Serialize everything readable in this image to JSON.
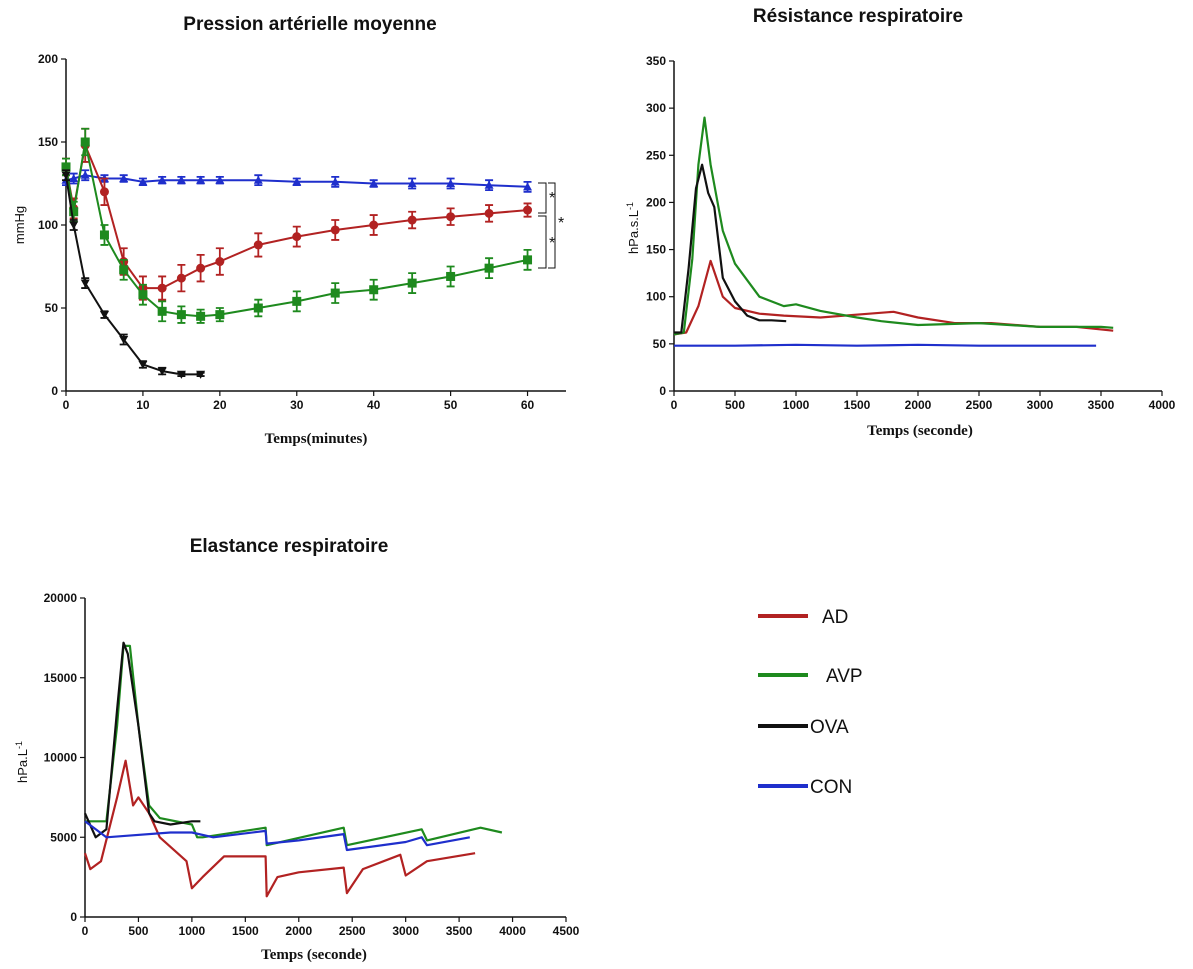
{
  "colors": {
    "AD": "#b22222",
    "AVP": "#1e8a1e",
    "OVA": "#111111",
    "CON": "#1f2fcc"
  },
  "legend": [
    {
      "key": "AD",
      "label": "AD"
    },
    {
      "key": "AVP",
      "label": "AVP"
    },
    {
      "key": "OVA",
      "label": "OVA"
    },
    {
      "key": "CON",
      "label": "CON"
    }
  ],
  "chart_data": [
    {
      "id": "pam",
      "type": "line",
      "title": "Pression artérielle moyenne",
      "xlabel": "Temps(minutes)",
      "ylabel": "mmHg",
      "xlim": [
        0,
        65
      ],
      "ylim": [
        0,
        200
      ],
      "xticks": [
        0,
        10,
        20,
        30,
        40,
        50,
        60
      ],
      "yticks": [
        0,
        50,
        100,
        150,
        200
      ],
      "annotations": [
        "*",
        "*",
        "*"
      ],
      "series": [
        {
          "key": "CON",
          "marker": "triangle-up",
          "x": [
            0,
            1,
            2.5,
            5,
            7.5,
            10,
            12.5,
            15,
            17.5,
            20,
            25,
            30,
            35,
            40,
            45,
            50,
            55,
            60
          ],
          "y": [
            127,
            128,
            130,
            128,
            128,
            126,
            127,
            127,
            127,
            127,
            127,
            126,
            126,
            125,
            125,
            125,
            124,
            123
          ],
          "err": [
            3,
            3,
            3,
            2,
            2,
            2,
            2,
            2,
            2,
            2,
            3,
            2,
            3,
            2,
            3,
            3,
            3,
            3
          ]
        },
        {
          "key": "AD",
          "marker": "circle",
          "x": [
            0,
            1,
            2.5,
            5,
            7.5,
            10,
            12.5,
            15,
            17.5,
            20,
            25,
            30,
            35,
            40,
            45,
            50,
            55,
            60
          ],
          "y": [
            135,
            110,
            148,
            120,
            78,
            62,
            62,
            68,
            74,
            78,
            88,
            93,
            97,
            100,
            103,
            105,
            107,
            109
          ],
          "err": [
            5,
            6,
            10,
            8,
            8,
            7,
            7,
            8,
            8,
            8,
            7,
            6,
            6,
            6,
            5,
            5,
            5,
            4
          ]
        },
        {
          "key": "AVP",
          "marker": "square",
          "x": [
            0,
            1,
            2.5,
            5,
            7.5,
            10,
            12.5,
            15,
            17.5,
            20,
            25,
            30,
            35,
            40,
            45,
            50,
            55,
            60
          ],
          "y": [
            135,
            108,
            150,
            94,
            73,
            58,
            48,
            46,
            45,
            46,
            50,
            54,
            59,
            61,
            65,
            69,
            74,
            79
          ],
          "err": [
            5,
            6,
            8,
            6,
            6,
            6,
            6,
            5,
            4,
            4,
            5,
            6,
            6,
            6,
            6,
            6,
            6,
            6
          ]
        },
        {
          "key": "OVA",
          "marker": "triangle-down",
          "x": [
            0,
            1,
            2.5,
            5,
            7.5,
            10,
            12.5,
            15,
            17.5
          ],
          "y": [
            130,
            100,
            65,
            46,
            31,
            16,
            12,
            10,
            10
          ],
          "err": [
            3,
            3,
            3,
            2,
            3,
            2,
            2,
            1,
            1
          ]
        }
      ]
    },
    {
      "id": "res",
      "type": "line",
      "title": "Résistance respiratoire",
      "xlabel": "Temps (seconde)",
      "ylabel": "hPa.s.L",
      "ylabel_sup": "-1",
      "xlim": [
        0,
        4000
      ],
      "ylim": [
        0,
        350
      ],
      "xticks": [
        0,
        500,
        1000,
        1500,
        2000,
        2500,
        3000,
        3500,
        4000
      ],
      "yticks": [
        0,
        50,
        100,
        150,
        200,
        250,
        300,
        350
      ],
      "series": [
        {
          "key": "CON",
          "x": [
            0,
            500,
            1000,
            1500,
            2000,
            2500,
            3000,
            3460
          ],
          "y": [
            48,
            48,
            49,
            48,
            49,
            48,
            48,
            48
          ]
        },
        {
          "key": "AD",
          "x": [
            0,
            100,
            200,
            300,
            400,
            500,
            700,
            900,
            1200,
            1600,
            1800,
            2000,
            2300,
            2600,
            3000,
            3300,
            3600
          ],
          "y": [
            60,
            62,
            90,
            138,
            100,
            88,
            82,
            80,
            78,
            82,
            84,
            78,
            72,
            72,
            68,
            68,
            64
          ]
        },
        {
          "key": "AVP",
          "x": [
            0,
            80,
            150,
            200,
            250,
            300,
            400,
            500,
            700,
            900,
            1000,
            1200,
            1500,
            1700,
            2000,
            2500,
            3000,
            3500,
            3600
          ],
          "y": [
            60,
            62,
            140,
            240,
            290,
            240,
            170,
            135,
            100,
            90,
            92,
            85,
            78,
            74,
            70,
            72,
            68,
            68,
            67
          ]
        },
        {
          "key": "OVA",
          "x": [
            0,
            60,
            120,
            180,
            230,
            280,
            330,
            400,
            500,
            600,
            700,
            800,
            920
          ],
          "y": [
            62,
            62,
            130,
            215,
            240,
            210,
            195,
            120,
            95,
            80,
            75,
            75,
            74
          ]
        }
      ]
    },
    {
      "id": "ela",
      "type": "line",
      "title": "Elastance respiratoire",
      "xlabel": "Temps (seconde)",
      "ylabel": "hPa.L",
      "ylabel_sup": "-1",
      "xlim": [
        0,
        4500
      ],
      "ylim": [
        0,
        20000
      ],
      "xticks": [
        0,
        500,
        1000,
        1500,
        2000,
        2500,
        3000,
        3500,
        4000,
        4500
      ],
      "yticks": [
        0,
        5000,
        10000,
        15000,
        20000
      ],
      "series": [
        {
          "key": "AD",
          "x": [
            0,
            50,
            150,
            300,
            380,
            450,
            500,
            600,
            700,
            950,
            1000,
            1100,
            1300,
            1690,
            1700,
            1800,
            2000,
            2420,
            2450,
            2600,
            2950,
            3000,
            3200,
            3650
          ],
          "y": [
            4000,
            3000,
            3500,
            7500,
            9800,
            7000,
            7500,
            6500,
            5000,
            3500,
            1800,
            2500,
            3800,
            3800,
            1300,
            2500,
            2800,
            3100,
            1500,
            3000,
            3900,
            2600,
            3500,
            4000
          ]
        },
        {
          "key": "AVP",
          "x": [
            0,
            200,
            300,
            360,
            420,
            500,
            600,
            700,
            1000,
            1050,
            1100,
            1690,
            1700,
            2420,
            2450,
            3150,
            3200,
            3700,
            3900
          ],
          "y": [
            6000,
            6000,
            12000,
            17000,
            17000,
            12000,
            7000,
            6200,
            5800,
            5000,
            5000,
            5600,
            4500,
            5600,
            4500,
            5500,
            4800,
            5600,
            5300
          ]
        },
        {
          "key": "OVA",
          "x": [
            0,
            100,
            200,
            300,
            360,
            400,
            500,
            600,
            650,
            800,
            1000,
            1080
          ],
          "y": [
            6500,
            5000,
            5500,
            13000,
            17200,
            16500,
            12000,
            6500,
            6000,
            5800,
            6000,
            6000
          ]
        },
        {
          "key": "CON",
          "x": [
            0,
            200,
            400,
            800,
            1000,
            1200,
            1690,
            1700,
            2000,
            2420,
            2450,
            3000,
            3150,
            3200,
            3600
          ],
          "y": [
            6000,
            5000,
            5100,
            5300,
            5300,
            5000,
            5400,
            4600,
            4800,
            5200,
            4200,
            4700,
            5000,
            4500,
            5000
          ]
        }
      ]
    }
  ]
}
